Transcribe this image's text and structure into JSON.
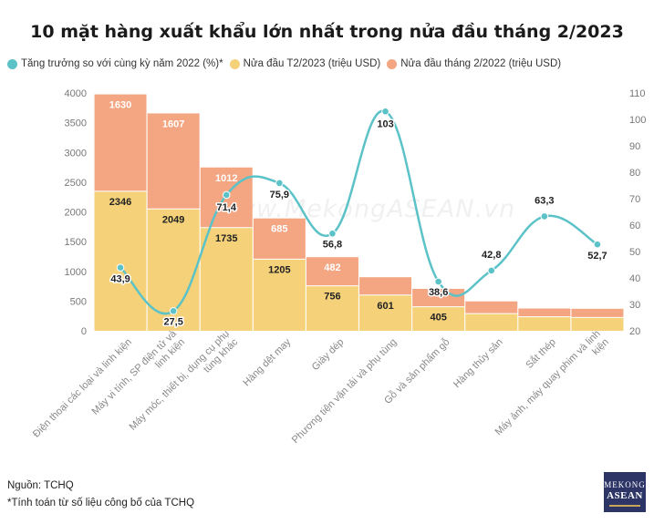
{
  "title": "10 mặt hàng xuất khẩu lớn nhất trong nửa đầu tháng 2/2023",
  "watermark": "www.MekongASEAN.vn",
  "legend": [
    {
      "label": "Tăng trưởng so với cùng kỳ năm 2022 (%)*",
      "color": "#5bc2c7"
    },
    {
      "label": "Nửa đầu T2/2023 (triệu USD)",
      "color": "#f5d27a"
    },
    {
      "label": "Nửa đầu tháng 2/2022 (triệu USD)",
      "color": "#f4a582"
    }
  ],
  "footer": {
    "source": "Nguồn: TCHQ",
    "note": "*Tính toán từ số liệu công bố của TCHQ"
  },
  "logo": {
    "line1": "MEKONG",
    "line2": "ASEAN"
  },
  "chart_data": {
    "type": "bar",
    "stacked": true,
    "title": "10 mặt hàng xuất khẩu lớn nhất trong nửa đầu tháng 2/2023",
    "categories": [
      "Điện thoại các loại và linh kiện",
      "Máy vi tính, SP điện tử và linh kiện",
      "Máy móc, thiết bị, dụng cụ phụ tùng khác",
      "Hàng dệt may",
      "Giày dép",
      "Phương tiện vận tải và phụ tùng",
      "Gỗ và sản phẩm gỗ",
      "Hàng thủy sản",
      "Sắt thép",
      "Máy ảnh, máy quay phim và linh kiện"
    ],
    "series": [
      {
        "name": "Nửa đầu T2/2023 (triệu USD)",
        "type": "bar",
        "color": "#f5d27a",
        "values": [
          2346,
          2049,
          1735,
          1205,
          756,
          601,
          405,
          290,
          235,
          225
        ],
        "labels": [
          "2346",
          "2049",
          "1735",
          "1205",
          "756",
          "601",
          "405",
          "",
          "",
          ""
        ]
      },
      {
        "name": "Nửa đầu tháng 2/2022 (triệu USD)",
        "type": "bar",
        "color": "#f4a582",
        "values": [
          1630,
          1607,
          1012,
          685,
          482,
          300,
          300,
          205,
          140,
          145
        ],
        "labels": [
          "1630",
          "1607",
          "1012",
          "685",
          "482",
          "",
          "",
          "",
          "",
          ""
        ]
      },
      {
        "name": "Tăng trưởng so với cùng kỳ năm 2022 (%)*",
        "type": "line",
        "axis": "right",
        "color": "#5bc2c7",
        "values": [
          43.9,
          27.5,
          71.4,
          75.9,
          56.8,
          103,
          38.6,
          42.8,
          63.3,
          52.7
        ],
        "labels": [
          "43,9",
          "27,5",
          "71,4",
          "75,9",
          "56,8",
          "103",
          "38,6",
          "42,8",
          "63,3",
          "52,7"
        ]
      }
    ],
    "ylim": [
      0,
      4000
    ],
    "yticks": [
      "0",
      "500",
      "1000",
      "1500",
      "2000",
      "2500",
      "3000",
      "3500",
      "4000"
    ],
    "y2lim": [
      20,
      110
    ],
    "y2ticks": [
      "20",
      "30",
      "40",
      "50",
      "60",
      "70",
      "80",
      "90",
      "100",
      "110"
    ],
    "grid": false,
    "legend_position": "top-left"
  }
}
